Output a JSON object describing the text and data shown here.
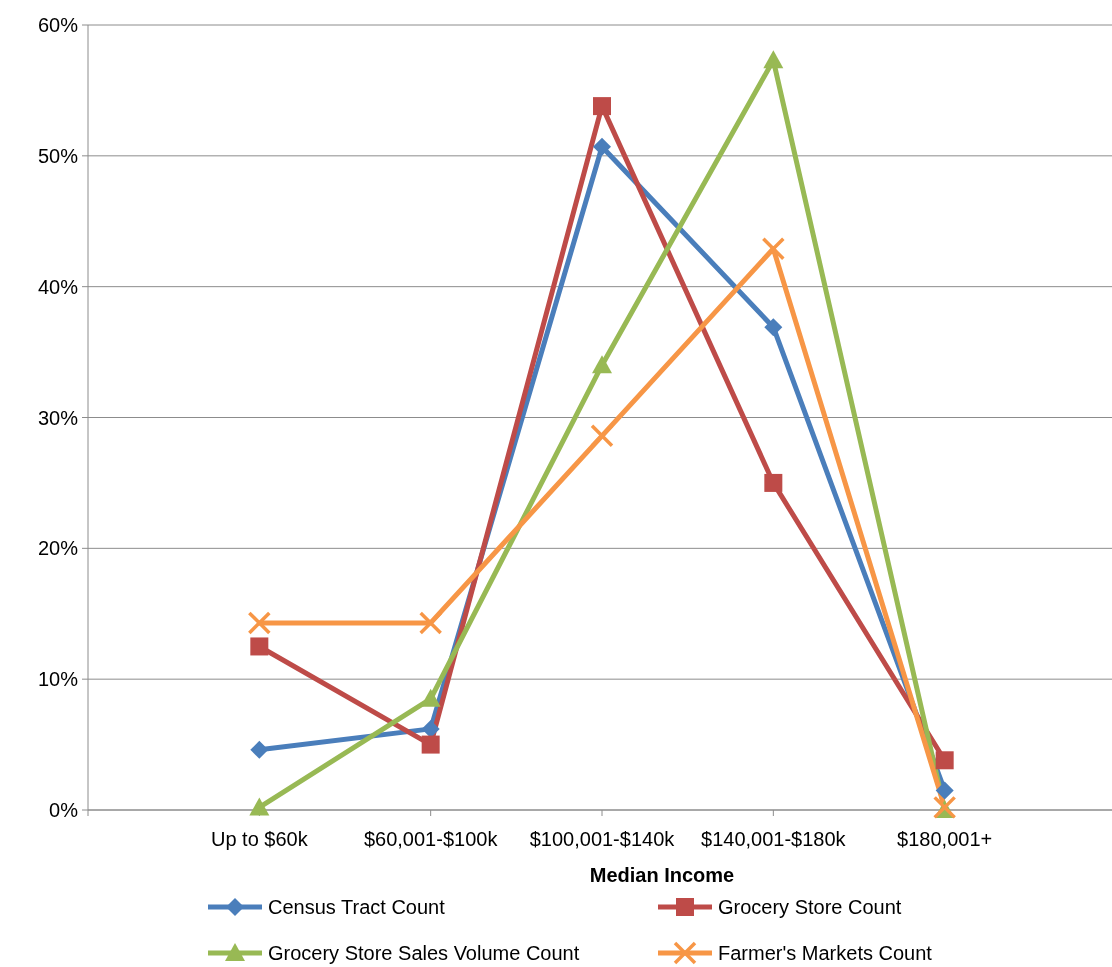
{
  "chart_data": {
    "type": "line",
    "xlabel": "Median Income",
    "categories": [
      "Up to $60k",
      "$60,001-$100k",
      "$100,001-$140k",
      "$140,001-$180k",
      "$180,001+"
    ],
    "series": [
      {
        "name": "Census Tract Count",
        "color": "#4a7ebb",
        "marker": "diamond",
        "values": [
          4.6,
          6.2,
          50.7,
          36.9,
          1.5
        ]
      },
      {
        "name": "Grocery Store Count",
        "color": "#be4b48",
        "marker": "square",
        "values": [
          12.5,
          5.0,
          53.8,
          25.0,
          3.8
        ]
      },
      {
        "name": "Grocery Store Sales Volume Count",
        "color": "#98b954",
        "marker": "triangle",
        "values": [
          0.2,
          8.5,
          34.0,
          57.3,
          0
        ]
      },
      {
        "name": "Farmer's Markets Count",
        "color": "#f79646",
        "marker": "cross",
        "values": [
          14.3,
          14.3,
          28.6,
          42.9,
          0.2
        ]
      }
    ],
    "ylim": [
      0,
      60
    ],
    "yticks": [
      {
        "value": 0,
        "label": "0%"
      },
      {
        "value": 10,
        "label": "10%"
      },
      {
        "value": 20,
        "label": "20%"
      },
      {
        "value": 30,
        "label": "30%"
      },
      {
        "value": 40,
        "label": "40%"
      },
      {
        "value": 50,
        "label": "50%"
      },
      {
        "value": 60,
        "label": "60%"
      }
    ],
    "grid": "y",
    "legend": "bottom",
    "line_style": "solid"
  }
}
